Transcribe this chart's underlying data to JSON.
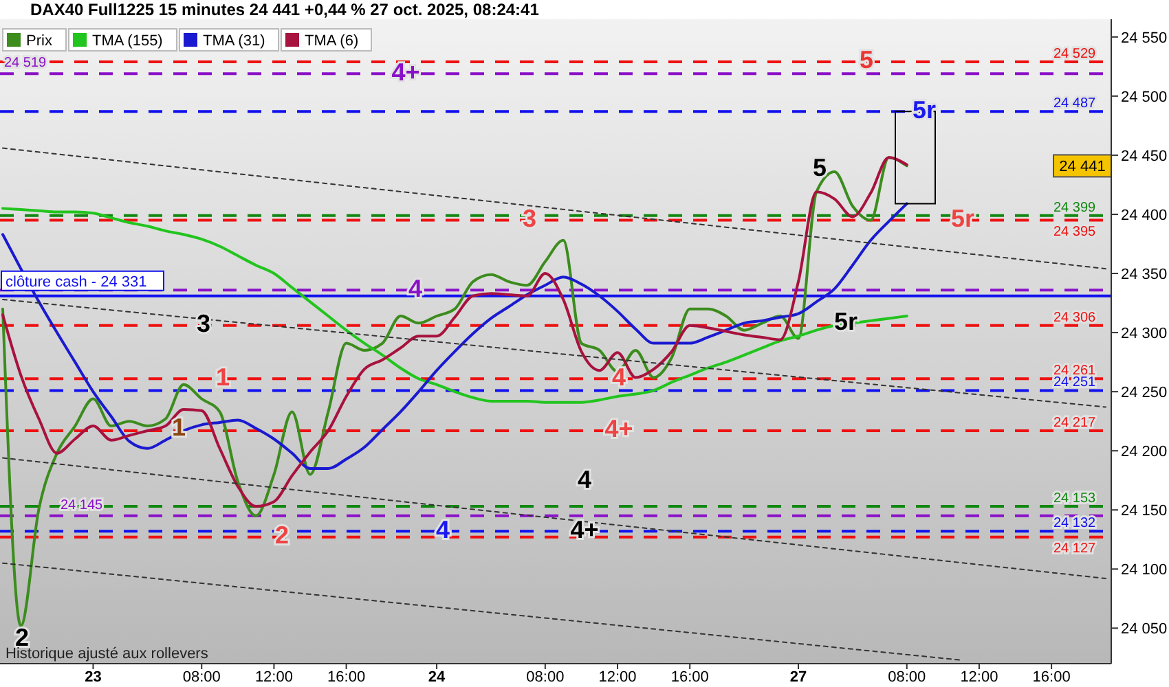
{
  "chart_data": {
    "type": "line",
    "title": "DAX40 Full1225 15 minutes 24 441 +0,44 % 27 oct. 2025, 08:24:41",
    "categories": [
      null,
      null,
      null,
      null,
      null,
      "23",
      null,
      null,
      null,
      null,
      null,
      "08:00",
      null,
      null,
      null,
      "12:00",
      null,
      null,
      null,
      "16:00",
      null,
      null,
      null,
      null,
      "24",
      null,
      null,
      null,
      null,
      null,
      "08:00",
      null,
      null,
      null,
      "12:00",
      null,
      null,
      null,
      "16:00",
      null,
      null,
      null,
      null,
      null,
      "27",
      null,
      null,
      null,
      null,
      null,
      "08:00",
      null,
      null,
      null,
      "12:00",
      null,
      null,
      null,
      "16:00",
      null,
      null,
      null
    ],
    "ylim": [
      24020,
      24565
    ],
    "yticks": [
      {
        "value": 24050,
        "label": "24 050"
      },
      {
        "value": 24100,
        "label": "24 100"
      },
      {
        "value": 24150,
        "label": "24 150"
      },
      {
        "value": 24200,
        "label": "24 200"
      },
      {
        "value": 24250,
        "label": "24 250"
      },
      {
        "value": 24300,
        "label": "24 300"
      },
      {
        "value": 24350,
        "label": "24 350"
      },
      {
        "value": 24400,
        "label": "24 400"
      },
      {
        "value": 24450,
        "label": "24 450"
      },
      {
        "value": 24500,
        "label": "24 500"
      },
      {
        "value": 24550,
        "label": "24 550"
      }
    ],
    "legend": "top left",
    "series": [
      {
        "name": "Prix",
        "color": "#3c8c1e",
        "values": [
          24320,
          24052,
          24151,
          24198,
          24221,
          24244,
          24221,
          24225,
          24221,
          24227,
          24256,
          24244,
          24233,
          24174,
          24145,
          24180,
          24233,
          24180,
          24233,
          24291,
          24285,
          24291,
          24314,
          24308,
          24314,
          24320,
          24343,
          24349,
          24343,
          24340,
          24360,
          24378,
          24291,
          24285,
          24267,
          24285,
          24262,
          24279,
          24320,
          24320,
          24314,
          24302,
          24308,
          24314,
          24295,
          24419,
          24436,
          24407,
          24395,
          24448,
          24441,
          null,
          null,
          null,
          null,
          null,
          null,
          null,
          null,
          null,
          null,
          null
        ]
      },
      {
        "name": "TMA (155)",
        "color": "#22c41e",
        "values": [
          24405,
          24404,
          24403,
          24402,
          24402,
          24401,
          24397,
          24393,
          24390,
          24386,
          24383,
          24379,
          24373,
          24365,
          24357,
          24350,
          24338,
          24326,
          24314,
          24302,
          24291,
          24281,
          24270,
          24261,
          24256,
          24250,
          24245,
          24242,
          24242,
          24242,
          24241,
          24241,
          24241,
          24243,
          24246,
          24248,
          24251,
          24258,
          24264,
          24270,
          24275,
          24281,
          24287,
          24293,
          24297,
          24302,
          24306,
          24308,
          24310,
          24312,
          24314,
          null,
          null,
          null,
          null,
          null,
          null,
          null,
          null,
          null,
          null,
          null
        ]
      },
      {
        "name": "TMA (31)",
        "color": "#1a1ad0",
        "values": [
          24383,
          24354,
          24326,
          24300,
          24275,
          24250,
          24229,
          24208,
          24202,
          24209,
          24217,
          24222,
          24224,
          24226,
          24219,
          24210,
          24198,
          24185,
          24185,
          24193,
          24203,
          24218,
          24233,
          24250,
          24268,
          24284,
          24299,
          24312,
          24322,
          24332,
          24340,
          24347,
          24341,
          24331,
          24318,
          24303,
          24291,
          24291,
          24291,
          24296,
          24302,
          24308,
          24310,
          24313,
          24316,
          24326,
          24337,
          24357,
          24378,
          24394,
          24409,
          null,
          null,
          null,
          null,
          null,
          null,
          null,
          null,
          null,
          null,
          null
        ]
      },
      {
        "name": "TMA (6)",
        "color": "#a8123e",
        "values": [
          24315,
          24264,
          24227,
          24198,
          24210,
          24221,
          24209,
          24213,
          24217,
          24221,
          24235,
          24234,
          24202,
          24170,
          24153,
          24157,
          24179,
          24199,
          24217,
          24246,
          24269,
          24277,
          24287,
          24297,
          24297,
          24313,
          24331,
          24333,
          24332,
          24331,
          24350,
          24328,
          24284,
          24268,
          24283,
          24262,
          24269,
          24284,
          24306,
          24304,
          24301,
          24298,
          24296,
          24294,
          24343,
          24419,
          24413,
          24398,
          24418,
          24448,
          24442,
          null,
          null,
          null,
          null,
          null,
          null,
          null,
          null,
          null,
          null,
          null
        ]
      },
      {
        "color": "#333333",
        "line_style": "dotted",
        "values": [
          24456,
          null,
          null,
          null,
          null,
          null,
          null,
          null,
          null,
          null,
          null,
          null,
          null,
          null,
          null,
          null,
          null,
          null,
          null,
          null,
          null,
          null,
          null,
          null,
          null,
          null,
          null,
          null,
          null,
          null,
          null,
          null,
          null,
          null,
          null,
          null,
          null,
          null,
          null,
          null,
          null,
          null,
          null,
          null,
          null,
          null,
          null,
          null,
          null,
          null,
          null,
          null,
          null,
          null,
          null,
          null,
          null,
          null,
          null,
          null,
          null,
          24354
        ]
      },
      {
        "color": "#333333",
        "line_style": "dotted",
        "values": [
          24328,
          null,
          null,
          null,
          null,
          null,
          null,
          null,
          null,
          null,
          null,
          null,
          null,
          null,
          null,
          null,
          null,
          null,
          null,
          null,
          null,
          null,
          null,
          null,
          null,
          null,
          null,
          null,
          null,
          null,
          null,
          null,
          null,
          null,
          null,
          null,
          null,
          null,
          null,
          null,
          null,
          null,
          null,
          null,
          null,
          null,
          null,
          null,
          null,
          null,
          null,
          null,
          null,
          null,
          null,
          null,
          null,
          null,
          null,
          null,
          null,
          24237
        ]
      },
      {
        "color": "#333333",
        "line_style": "dotted",
        "values": [
          24194,
          null,
          null,
          null,
          null,
          null,
          null,
          null,
          null,
          null,
          null,
          null,
          null,
          null,
          null,
          null,
          null,
          null,
          null,
          null,
          null,
          null,
          null,
          null,
          null,
          null,
          null,
          null,
          null,
          null,
          null,
          null,
          null,
          null,
          null,
          null,
          null,
          null,
          null,
          null,
          null,
          null,
          null,
          null,
          null,
          null,
          null,
          null,
          null,
          null,
          null,
          null,
          null,
          null,
          null,
          null,
          null,
          null,
          null,
          null,
          null,
          24092
        ]
      },
      {
        "color": "#333333",
        "line_style": "dotted",
        "values": [
          24105,
          null,
          null,
          null,
          null,
          null,
          null,
          null,
          null,
          null,
          null,
          null,
          null,
          null,
          null,
          null,
          null,
          null,
          null,
          null,
          null,
          null,
          null,
          null,
          null,
          null,
          null,
          null,
          null,
          null,
          null,
          null,
          null,
          null,
          null,
          null,
          null,
          null,
          null,
          null,
          null,
          null,
          null,
          null,
          null,
          null,
          null,
          null,
          null,
          null,
          null,
          null,
          null,
          24023,
          null,
          null,
          null,
          null,
          null,
          null,
          null,
          null
        ]
      }
    ],
    "ref_lines": [
      {
        "axis": "y",
        "value": 24529,
        "label": "24 529",
        "color": "#ee1111",
        "line_style": "dashed"
      },
      {
        "axis": "y",
        "value": 24519,
        "label": "24 519",
        "color": "#8a10c8",
        "line_style": "dashed"
      },
      {
        "axis": "y",
        "value": 24487,
        "label": "24 487",
        "color": "#1010ee",
        "line_style": "dashed"
      },
      {
        "axis": "y",
        "value": 24399,
        "label": "24 399",
        "color": "#118811",
        "line_style": "dashed"
      },
      {
        "axis": "y",
        "value": 24395,
        "label": "24 395",
        "color": "#ee1111",
        "line_style": "dashed"
      },
      {
        "axis": "y",
        "value": 24336,
        "color": "#8a10c8",
        "line_style": "dashed"
      },
      {
        "axis": "y",
        "value": 24331,
        "label": "clôture cash -  24 331",
        "color": "#1010ee",
        "line_style": "solid"
      },
      {
        "axis": "y",
        "value": 24306,
        "label": "24 306",
        "color": "#ee1111",
        "line_style": "dashed"
      },
      {
        "axis": "y",
        "value": 24261,
        "label": "24 261",
        "color": "#ee1111",
        "line_style": "dashed"
      },
      {
        "axis": "y",
        "value": 24251,
        "label": "24 251",
        "color": "#1010ee",
        "line_style": "dashed"
      },
      {
        "axis": "y",
        "value": 24217,
        "label": "24 217",
        "color": "#ee1111",
        "line_style": "dashed"
      },
      {
        "axis": "y",
        "value": 24153,
        "label": "24 153",
        "color": "#118811",
        "line_style": "dashed"
      },
      {
        "axis": "y",
        "value": 24145,
        "label": "24 145",
        "color": "#8a10c8",
        "line_style": "dashed"
      },
      {
        "axis": "y",
        "value": 24132,
        "label": "24 132",
        "color": "#1010ee",
        "line_style": "dashed"
      },
      {
        "axis": "y",
        "value": 24127,
        "label": "24 127",
        "color": "#ee1111",
        "line_style": "dashed"
      }
    ],
    "annotations": [
      {
        "text": "4+",
        "y": 24519
      },
      {
        "text": "5",
        "y": 24529
      },
      {
        "text": "5r",
        "y": 24487
      },
      "5",
      {
        "text": "3",
        "y": 24395
      },
      {
        "text": "5r",
        "y": 24395
      },
      {
        "text": "3",
        "y": 24306
      },
      {
        "text": "4",
        "y": 24336
      },
      {
        "text": "1",
        "y": 24261
      },
      "1",
      {
        "text": "4",
        "y": 24261
      },
      {
        "text": "4+",
        "y": 24217
      },
      "5r",
      "4",
      {
        "text": "4+",
        "y": 24132
      },
      {
        "text": "4",
        "y": 24132
      },
      {
        "text": "2",
        "y": 24127
      },
      "2",
      "24 441",
      "Historique ajusté aux rollevers"
    ]
  }
}
